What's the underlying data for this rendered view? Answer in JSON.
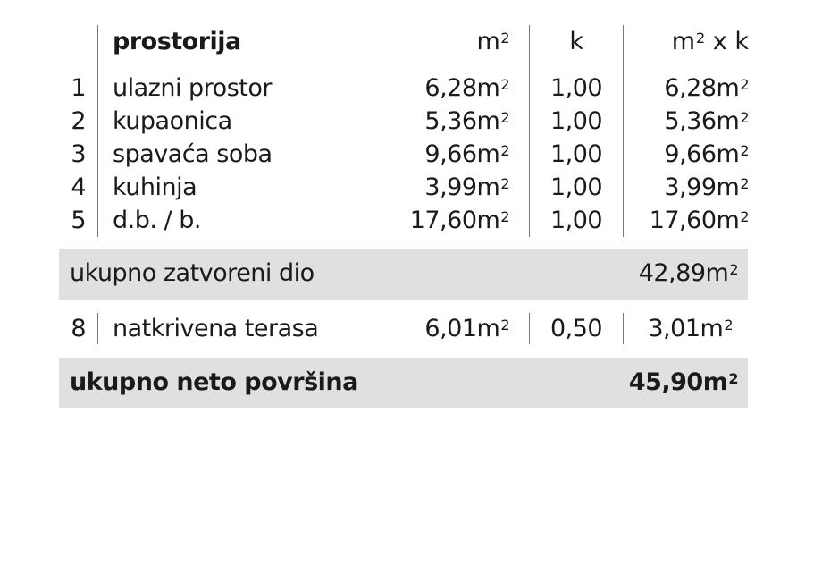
{
  "header": {
    "room": "prostorija",
    "area": "m",
    "k": "k",
    "product": "m x k",
    "sup": "2"
  },
  "unit_sup": "2",
  "rows": [
    {
      "num": "1",
      "name": "ulazni prostor",
      "area": "6,28m",
      "k": "1,00",
      "total": "6,28m"
    },
    {
      "num": "2",
      "name": "kupaonica",
      "area": "5,36m",
      "k": "1,00",
      "total": "5,36m"
    },
    {
      "num": "3",
      "name": "spavaća soba",
      "area": "9,66m",
      "k": "1,00",
      "total": "9,66m"
    },
    {
      "num": "4",
      "name": "kuhinja",
      "area": "3,99m",
      "k": "1,00",
      "total": "3,99m"
    },
    {
      "num": "5",
      "name": "d.b. / b.",
      "area": "17,60m",
      "k": "1,00",
      "total": "17,60m"
    }
  ],
  "subtotal": {
    "label": "ukupno zatvoreni dio",
    "value": "42,89m"
  },
  "terrace": {
    "num": "8",
    "name": "natkrivena terasa",
    "area": "6,01m",
    "k": "0,50",
    "total": "3,01m"
  },
  "grand_total": {
    "label": "ukupno neto površina",
    "value": "45,90m"
  },
  "colors": {
    "bar": "#e0e0e0",
    "text": "#1a1a1a"
  }
}
